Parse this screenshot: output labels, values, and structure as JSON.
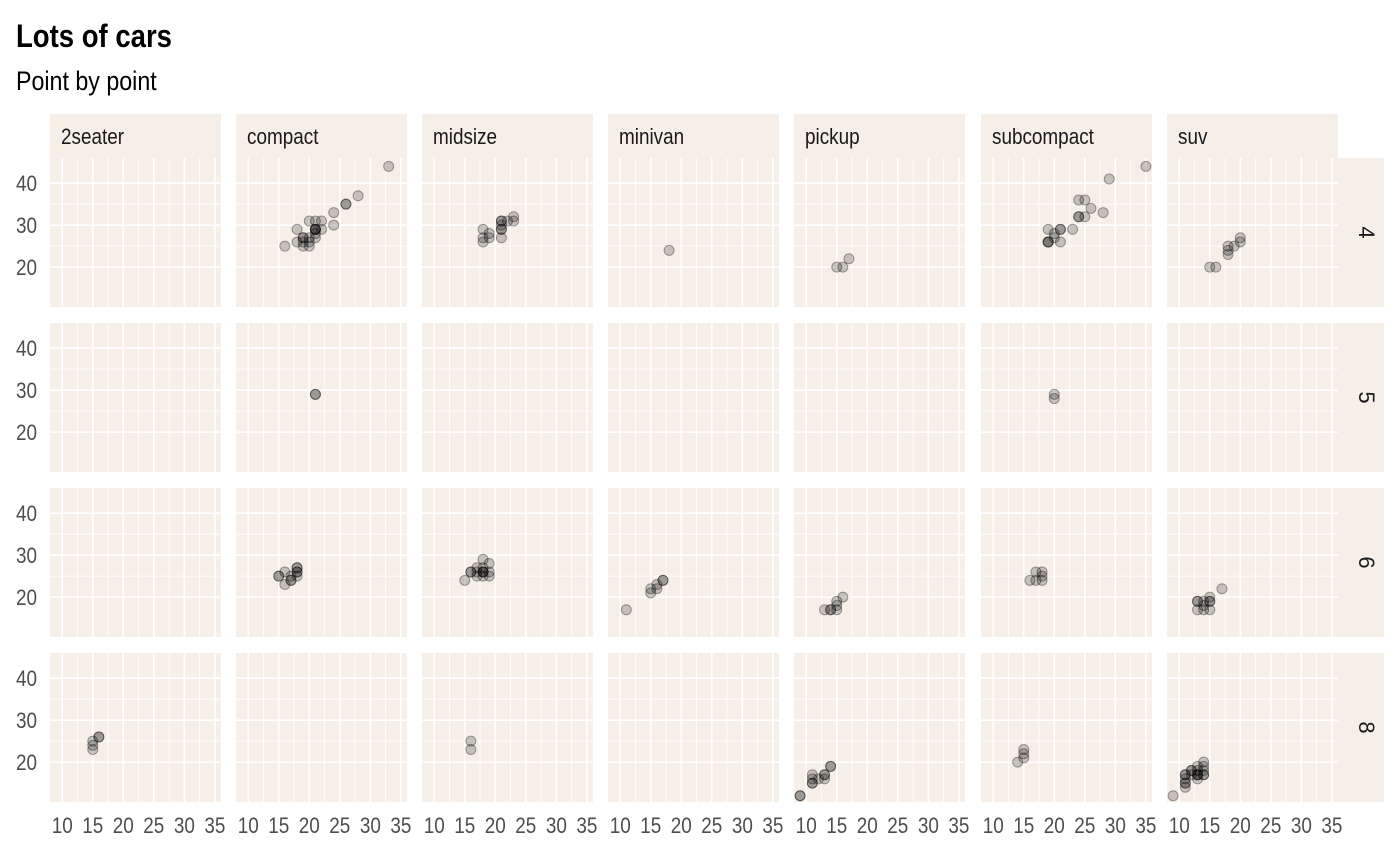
{
  "title": "Lots of cars",
  "subtitle": "Point by point",
  "colors": {
    "panel_background": "#f5efe7",
    "grid": "#ffffff",
    "point": "#000000",
    "text": "#4d4d4d"
  },
  "chart_data": {
    "type": "scatter",
    "title": "Lots of cars",
    "subtitle": "Point by point",
    "xlabel": "",
    "ylabel": "",
    "facet_columns": [
      "2seater",
      "compact",
      "midsize",
      "minivan",
      "pickup",
      "subcompact",
      "suv"
    ],
    "facet_rows": [
      "4",
      "5",
      "6",
      "8"
    ],
    "x_ticks": [
      10,
      15,
      20,
      25,
      30,
      35
    ],
    "y_ticks": [
      20,
      30,
      40
    ],
    "xlim": [
      8,
      36
    ],
    "ylim": [
      10.5,
      46
    ],
    "grid": true,
    "point_alpha": 0.2,
    "panels": [
      {
        "col": "2seater",
        "row": "4",
        "points": []
      },
      {
        "col": "compact",
        "row": "4",
        "points": [
          [
            16,
            25
          ],
          [
            18,
            26
          ],
          [
            18,
            29
          ],
          [
            19,
            25
          ],
          [
            19,
            26
          ],
          [
            19,
            27
          ],
          [
            19,
            27
          ],
          [
            20,
            25
          ],
          [
            20,
            26
          ],
          [
            20,
            27
          ],
          [
            20,
            31
          ],
          [
            21,
            27
          ],
          [
            21,
            28
          ],
          [
            21,
            29
          ],
          [
            21,
            29
          ],
          [
            21,
            29
          ],
          [
            21,
            29
          ],
          [
            21,
            31
          ],
          [
            22,
            29
          ],
          [
            22,
            31
          ],
          [
            24,
            30
          ],
          [
            24,
            33
          ],
          [
            26,
            35
          ],
          [
            26,
            35
          ],
          [
            28,
            37
          ],
          [
            33,
            44
          ]
        ]
      },
      {
        "col": "midsize",
        "row": "4",
        "points": [
          [
            18,
            26
          ],
          [
            18,
            27
          ],
          [
            18,
            29
          ],
          [
            19,
            27
          ],
          [
            19,
            28
          ],
          [
            21,
            27
          ],
          [
            21,
            29
          ],
          [
            21,
            29
          ],
          [
            21,
            30
          ],
          [
            21,
            31
          ],
          [
            21,
            31
          ],
          [
            22,
            31
          ],
          [
            23,
            31
          ],
          [
            23,
            32
          ]
        ]
      },
      {
        "col": "minivan",
        "row": "4",
        "points": [
          [
            18,
            24
          ]
        ]
      },
      {
        "col": "pickup",
        "row": "4",
        "points": [
          [
            15,
            20
          ],
          [
            16,
            20
          ],
          [
            17,
            22
          ]
        ]
      },
      {
        "col": "subcompact",
        "row": "4",
        "points": [
          [
            19,
            26
          ],
          [
            19,
            26
          ],
          [
            19,
            26
          ],
          [
            19,
            29
          ],
          [
            20,
            27
          ],
          [
            20,
            28
          ],
          [
            21,
            26
          ],
          [
            21,
            29
          ],
          [
            21,
            29
          ],
          [
            23,
            29
          ],
          [
            24,
            32
          ],
          [
            24,
            32
          ],
          [
            24,
            36
          ],
          [
            25,
            32
          ],
          [
            25,
            36
          ],
          [
            26,
            34
          ],
          [
            28,
            33
          ],
          [
            29,
            41
          ],
          [
            35,
            44
          ]
        ]
      },
      {
        "col": "suv",
        "row": "4",
        "points": [
          [
            15,
            20
          ],
          [
            16,
            20
          ],
          [
            18,
            23
          ],
          [
            18,
            24
          ],
          [
            18,
            25
          ],
          [
            19,
            25
          ],
          [
            20,
            26
          ],
          [
            20,
            27
          ]
        ]
      },
      {
        "col": "compact",
        "row": "5",
        "points": [
          [
            21,
            29
          ],
          [
            21,
            29
          ]
        ]
      },
      {
        "col": "subcompact",
        "row": "5",
        "points": [
          [
            20,
            28
          ],
          [
            20,
            29
          ]
        ]
      },
      {
        "col": "compact",
        "row": "6",
        "points": [
          [
            15,
            25
          ],
          [
            15,
            25
          ],
          [
            16,
            23
          ],
          [
            16,
            26
          ],
          [
            17,
            24
          ],
          [
            17,
            24
          ],
          [
            17,
            25
          ],
          [
            18,
            25
          ],
          [
            18,
            26
          ],
          [
            18,
            26
          ],
          [
            18,
            27
          ],
          [
            18,
            27
          ]
        ]
      },
      {
        "col": "midsize",
        "row": "6",
        "points": [
          [
            15,
            24
          ],
          [
            16,
            26
          ],
          [
            16,
            26
          ],
          [
            17,
            25
          ],
          [
            17,
            26
          ],
          [
            17,
            27
          ],
          [
            18,
            25
          ],
          [
            18,
            26
          ],
          [
            18,
            26
          ],
          [
            18,
            26
          ],
          [
            18,
            27
          ],
          [
            18,
            29
          ],
          [
            19,
            25
          ],
          [
            19,
            26
          ],
          [
            19,
            28
          ]
        ]
      },
      {
        "col": "minivan",
        "row": "6",
        "points": [
          [
            11,
            17
          ],
          [
            15,
            21
          ],
          [
            15,
            22
          ],
          [
            16,
            22
          ],
          [
            16,
            23
          ],
          [
            17,
            24
          ],
          [
            17,
            24
          ]
        ]
      },
      {
        "col": "pickup",
        "row": "6",
        "points": [
          [
            13,
            17
          ],
          [
            14,
            17
          ],
          [
            14,
            17
          ],
          [
            15,
            17
          ],
          [
            15,
            18
          ],
          [
            15,
            19
          ],
          [
            16,
            20
          ]
        ]
      },
      {
        "col": "subcompact",
        "row": "6",
        "points": [
          [
            16,
            24
          ],
          [
            17,
            24
          ],
          [
            17,
            26
          ],
          [
            18,
            24
          ],
          [
            18,
            25
          ],
          [
            18,
            26
          ]
        ]
      },
      {
        "col": "suv",
        "row": "6",
        "points": [
          [
            13,
            17
          ],
          [
            13,
            19
          ],
          [
            13,
            19
          ],
          [
            14,
            18
          ],
          [
            14,
            19
          ],
          [
            14,
            17
          ],
          [
            15,
            17
          ],
          [
            15,
            19
          ],
          [
            15,
            20
          ],
          [
            15,
            19
          ],
          [
            17,
            22
          ]
        ]
      },
      {
        "col": "2seater",
        "row": "8",
        "points": [
          [
            15,
            23
          ],
          [
            15,
            24
          ],
          [
            15,
            25
          ],
          [
            16,
            26
          ],
          [
            16,
            26
          ]
        ]
      },
      {
        "col": "midsize",
        "row": "8",
        "points": [
          [
            16,
            23
          ],
          [
            16,
            25
          ]
        ]
      },
      {
        "col": "pickup",
        "row": "8",
        "points": [
          [
            9,
            12
          ],
          [
            9,
            12
          ],
          [
            11,
            15
          ],
          [
            11,
            15
          ],
          [
            11,
            16
          ],
          [
            11,
            17
          ],
          [
            12,
            16
          ],
          [
            13,
            16
          ],
          [
            13,
            17
          ],
          [
            13,
            17
          ],
          [
            14,
            19
          ],
          [
            14,
            19
          ]
        ]
      },
      {
        "col": "subcompact",
        "row": "8",
        "points": [
          [
            14,
            20
          ],
          [
            15,
            21
          ],
          [
            15,
            22
          ],
          [
            15,
            23
          ]
        ]
      },
      {
        "col": "suv",
        "row": "8",
        "points": [
          [
            9,
            12
          ],
          [
            11,
            14
          ],
          [
            11,
            15
          ],
          [
            11,
            15
          ],
          [
            11,
            16
          ],
          [
            11,
            17
          ],
          [
            11,
            17
          ],
          [
            12,
            17
          ],
          [
            12,
            18
          ],
          [
            12,
            18
          ],
          [
            13,
            16
          ],
          [
            13,
            17
          ],
          [
            13,
            17
          ],
          [
            13,
            17
          ],
          [
            13,
            18
          ],
          [
            13,
            19
          ],
          [
            14,
            17
          ],
          [
            14,
            17
          ],
          [
            14,
            18
          ],
          [
            14,
            19
          ],
          [
            14,
            20
          ]
        ]
      }
    ]
  }
}
